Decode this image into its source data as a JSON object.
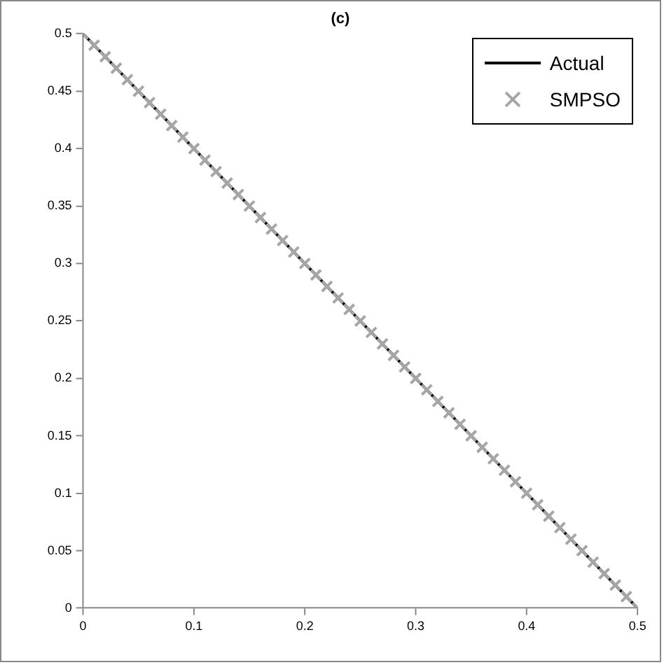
{
  "chart_data": {
    "type": "scatter",
    "title": "(c)",
    "xlim": [
      0,
      0.5
    ],
    "xticks": [
      0,
      0.1,
      0.2,
      0.3,
      0.4,
      0.5
    ],
    "ylim": [
      0,
      0.5
    ],
    "yticks": [
      0,
      0.05,
      0.1,
      0.15,
      0.2,
      0.25,
      0.3,
      0.35,
      0.4,
      0.45,
      0.5
    ],
    "grid": false,
    "legend": "top right",
    "series": [
      {
        "name": "Actual",
        "type": "line",
        "color": "#000000",
        "marker": "none",
        "line_style": "solid",
        "x": [
          0,
          0.5
        ],
        "values": [
          0.5,
          0
        ]
      },
      {
        "name": "SMPSO",
        "type": "scatter",
        "color": "#a6a6a6",
        "marker": "cross",
        "x": [
          0,
          0.01,
          0.02,
          0.03,
          0.04,
          0.05,
          0.06,
          0.07,
          0.08,
          0.09,
          0.1,
          0.11,
          0.12,
          0.13,
          0.14,
          0.15,
          0.16,
          0.17,
          0.18,
          0.19,
          0.2,
          0.21,
          0.22,
          0.23,
          0.24,
          0.25,
          0.26,
          0.27,
          0.28,
          0.29,
          0.3,
          0.31,
          0.32,
          0.33,
          0.34,
          0.35,
          0.36,
          0.37,
          0.38,
          0.39,
          0.4,
          0.41,
          0.42,
          0.43,
          0.44,
          0.45,
          0.46,
          0.47,
          0.48,
          0.49,
          0.5
        ],
        "values": [
          0.5,
          0.49,
          0.48,
          0.47,
          0.46,
          0.45,
          0.44,
          0.43,
          0.42,
          0.41,
          0.4,
          0.39,
          0.38,
          0.37,
          0.36,
          0.35,
          0.34,
          0.33,
          0.32,
          0.31,
          0.3,
          0.29,
          0.28,
          0.27,
          0.26,
          0.25,
          0.24,
          0.23,
          0.22,
          0.21,
          0.2,
          0.19,
          0.18,
          0.17,
          0.16,
          0.15,
          0.14,
          0.13,
          0.12,
          0.11,
          0.1,
          0.09,
          0.08,
          0.07,
          0.06,
          0.05,
          0.04,
          0.03,
          0.02,
          0.01,
          0
        ]
      }
    ]
  }
}
